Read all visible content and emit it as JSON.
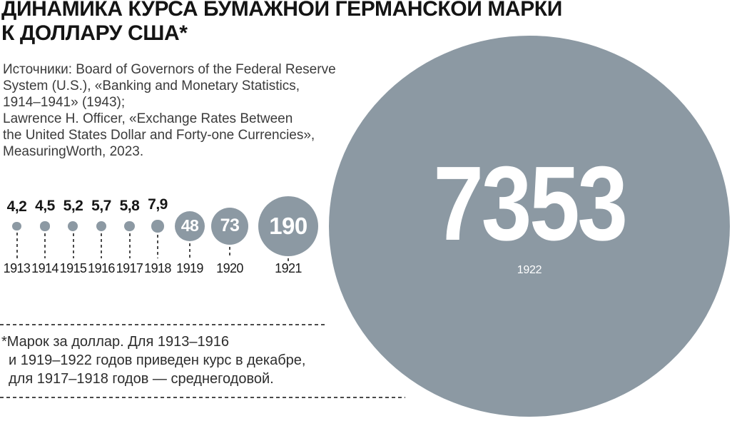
{
  "title": {
    "line1": "ДИНАМИКА КУРСА БУМАЖНОЙ ГЕРМАНСКОЙ МАРКИ",
    "line2": "К ДОЛЛАРУ США*"
  },
  "sources": {
    "lines": [
      "Источники: Board of Governors of the Federal Reserve",
      "System (U.S.), «Banking and Monetary Statistics,",
      "1914–1941» (1943);",
      "Lawrence H. Officer, «Exchange Rates Between",
      "the United States Dollar and Forty-one Currencies»,",
      "MeasuringWorth, 2023."
    ]
  },
  "footnote": {
    "lines": [
      "*Марок за доллар. Для 1913–1916",
      "и 1919–1922 годов приведен курс в декабре,",
      "для 1917–1918 годов — среднегодовой."
    ]
  },
  "colors": {
    "bubble": "#8C99A3",
    "title_text": "#141414",
    "source_text": "#3B3B3B",
    "bubble_label": "#FFFFFF",
    "dash": "#4A4A4A"
  },
  "chart_data": {
    "type": "bubble",
    "title": "ДИНАМИКА КУРСА БУМАЖНОЙ ГЕРМАНСКОЙ МАРКИ К ДОЛЛАРУ США*",
    "unit": "марок за доллар США",
    "categories": [
      "1913",
      "1914",
      "1915",
      "1916",
      "1917",
      "1918",
      "1919",
      "1920",
      "1921",
      "1922"
    ],
    "values": [
      4.2,
      4.5,
      5.2,
      5.7,
      5.8,
      7.9,
      48,
      73,
      190,
      7353
    ],
    "value_labels": [
      "4,2",
      "4,5",
      "5,2",
      "5,7",
      "5,8",
      "7,9",
      "48",
      "73",
      "190",
      "7353"
    ],
    "size_encoding": "area proportional to value",
    "legend": "none",
    "axes": "none"
  }
}
